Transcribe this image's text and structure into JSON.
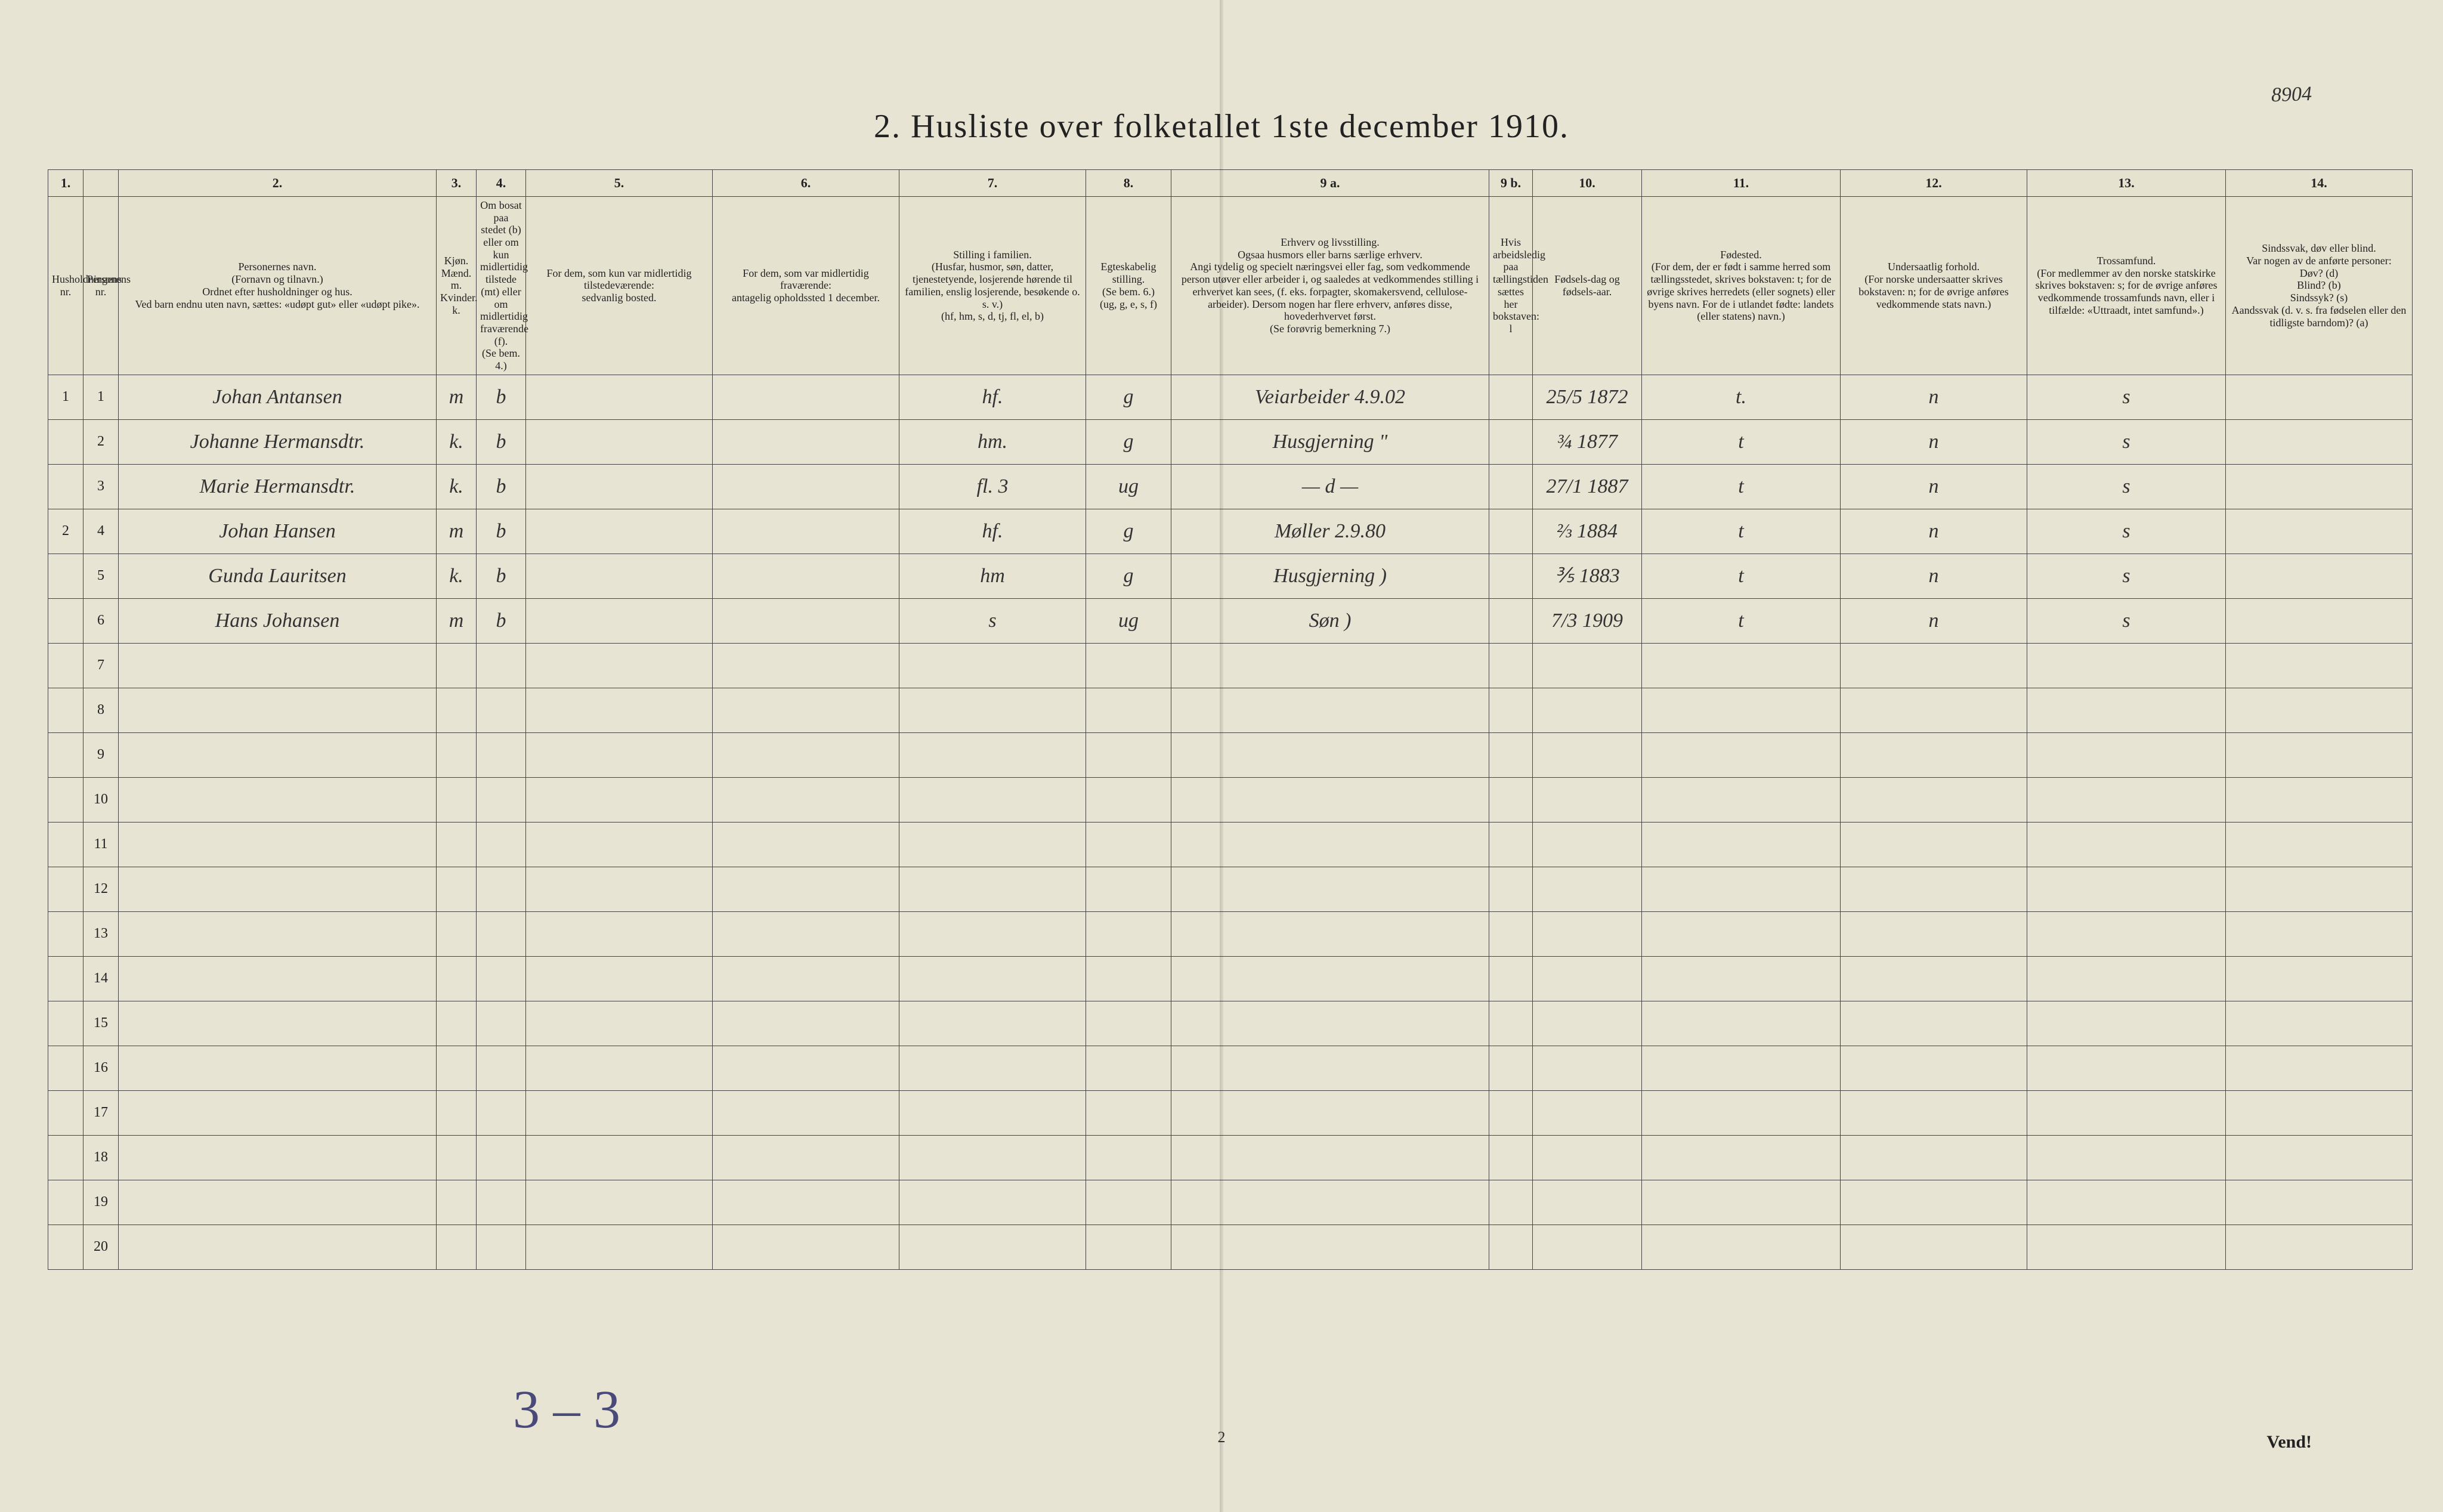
{
  "title": "2.  Husliste over folketallet 1ste december 1910.",
  "page_number_handwritten": "8904",
  "footer_left": "3 – 3",
  "footer_center": "2",
  "footer_right": "Vend!",
  "colors": {
    "paper": "#e8e4d4",
    "ink": "#222222",
    "rule": "#444444",
    "pencil": "#555555",
    "blue_ink": "#4a4a7a",
    "outer_bg": "#1a1a1a"
  },
  "column_numbers": [
    "1.",
    "",
    "2.",
    "3.",
    "4.",
    "5.",
    "6.",
    "7.",
    "8.",
    "9 a.",
    "9 b.",
    "10.",
    "11.",
    "12.",
    "13.",
    "14."
  ],
  "column_headers": [
    "Husholdningens nr.",
    "Personens nr.",
    "Personernes navn.\n(Fornavn og tilnavn.)\nOrdnet efter husholdninger og hus.\nVed barn endnu uten navn, sættes: «udøpt gut» eller «udøpt pike».",
    "Kjøn.\nMænd. m.\nKvinder. k.",
    "Om bosat paa stedet (b) eller om kun midlertidig tilstede (mt) eller om midlertidig fraværende (f).\n(Se bem. 4.)",
    "For dem, som kun var midlertidig tilstedeværende:\nsedvanlig bosted.",
    "For dem, som var midlertidig fraværende:\nantagelig opholdssted 1 december.",
    "Stilling i familien.\n(Husfar, husmor, søn, datter, tjenestetyende, losjerende hørende til familien, enslig losjerende, besøkende o. s. v.)\n(hf, hm, s, d, tj, fl, el, b)",
    "Egteskabelig stilling.\n(Se bem. 6.)\n(ug, g, e, s, f)",
    "Erhverv og livsstilling.\nOgsaa husmors eller barns særlige erhverv.\nAngi tydelig og specielt næringsvei eller fag, som vedkommende person utøver eller arbeider i, og saaledes at vedkommendes stilling i erhvervet kan sees, (f. eks. forpagter, skomakersvend, cellulose-arbeider). Dersom nogen har flere erhverv, anføres disse, hovederhvervet først.\n(Se forøvrig bemerkning 7.)",
    "Hvis arbeidsledig paa tællingstiden sættes her bokstaven: l",
    "Fødsels-dag og fødsels-aar.",
    "Fødested.\n(For dem, der er født i samme herred som tællingsstedet, skrives bokstaven: t; for de øvrige skrives herredets (eller sognets) eller byens navn. For de i utlandet fødte: landets (eller statens) navn.)",
    "Undersaatlig forhold.\n(For norske undersaatter skrives bokstaven: n; for de øvrige anføres vedkommende stats navn.)",
    "Trossamfund.\n(For medlemmer av den norske statskirke skrives bokstaven: s; for de øvrige anføres vedkommende trossamfunds navn, eller i tilfælde: «Uttraadt, intet samfund».)",
    "Sindssvak, døv eller blind.\nVar nogen av de anførte personer:\nDøv? (d)\nBlind? (b)\nSindssyk? (s)\nAandssvak (d. v. s. fra fødselen eller den tidligste barndom)? (a)"
  ],
  "rows": [
    {
      "hh": "1",
      "pn": "1",
      "name": "Johan Antansen",
      "sex": "m",
      "bosat": "b",
      "c5": "",
      "c6": "",
      "c7": "hf.",
      "c8": "g",
      "c9a": "Veiarbeider  4.9.02",
      "c9b": "",
      "c10": "25/5 1872",
      "c11": "t.",
      "c12": "n",
      "c13": "s",
      "c14": ""
    },
    {
      "hh": "",
      "pn": "2",
      "name": "Johanne Hermansdtr.",
      "sex": "k.",
      "bosat": "b",
      "c5": "",
      "c6": "",
      "c7": "hm.",
      "c8": "g",
      "c9a": "Husgjerning        \"",
      "c9b": "",
      "c10": "¾ 1877",
      "c11": "t",
      "c12": "n",
      "c13": "s",
      "c14": ""
    },
    {
      "hh": "",
      "pn": "3",
      "name": "Marie Hermansdtr.",
      "sex": "k.",
      "bosat": "b",
      "c5": "",
      "c6": "",
      "c7": "fl.      3",
      "c8": "ug",
      "c9a": "— d —",
      "c9b": "",
      "c10": "27/1 1887",
      "c11": "t",
      "c12": "n",
      "c13": "s",
      "c14": ""
    },
    {
      "hh": "2",
      "pn": "4",
      "name": "Johan Hansen",
      "sex": "m",
      "bosat": "b",
      "c5": "",
      "c6": "",
      "c7": "hf.",
      "c8": "g",
      "c9a": "Møller    2.9.80",
      "c9b": "",
      "c10": "⅔ 1884",
      "c11": "t",
      "c12": "n",
      "c13": "s",
      "c14": ""
    },
    {
      "hh": "",
      "pn": "5",
      "name": "Gunda Lauritsen",
      "sex": "k.",
      "bosat": "b",
      "c5": "",
      "c6": "",
      "c7": "hm",
      "c8": "g",
      "c9a": "Husgjerning    )",
      "c9b": "",
      "c10": "⅗ 1883",
      "c11": "t",
      "c12": "n",
      "c13": "s",
      "c14": ""
    },
    {
      "hh": "",
      "pn": "6",
      "name": "Hans Johansen",
      "sex": "m",
      "bosat": "b",
      "c5": "",
      "c6": "",
      "c7": "s",
      "c8": "ug",
      "c9a": "Søn         )",
      "c9b": "",
      "c10": "7/3 1909",
      "c11": "t",
      "c12": "n",
      "c13": "s",
      "c14": ""
    },
    {
      "hh": "",
      "pn": "7",
      "name": "",
      "sex": "",
      "bosat": "",
      "c5": "",
      "c6": "",
      "c7": "",
      "c8": "",
      "c9a": "",
      "c9b": "",
      "c10": "",
      "c11": "",
      "c12": "",
      "c13": "",
      "c14": ""
    },
    {
      "hh": "",
      "pn": "8",
      "name": "",
      "sex": "",
      "bosat": "",
      "c5": "",
      "c6": "",
      "c7": "",
      "c8": "",
      "c9a": "",
      "c9b": "",
      "c10": "",
      "c11": "",
      "c12": "",
      "c13": "",
      "c14": ""
    },
    {
      "hh": "",
      "pn": "9",
      "name": "",
      "sex": "",
      "bosat": "",
      "c5": "",
      "c6": "",
      "c7": "",
      "c8": "",
      "c9a": "",
      "c9b": "",
      "c10": "",
      "c11": "",
      "c12": "",
      "c13": "",
      "c14": ""
    },
    {
      "hh": "",
      "pn": "10",
      "name": "",
      "sex": "",
      "bosat": "",
      "c5": "",
      "c6": "",
      "c7": "",
      "c8": "",
      "c9a": "",
      "c9b": "",
      "c10": "",
      "c11": "",
      "c12": "",
      "c13": "",
      "c14": ""
    },
    {
      "hh": "",
      "pn": "11",
      "name": "",
      "sex": "",
      "bosat": "",
      "c5": "",
      "c6": "",
      "c7": "",
      "c8": "",
      "c9a": "",
      "c9b": "",
      "c10": "",
      "c11": "",
      "c12": "",
      "c13": "",
      "c14": ""
    },
    {
      "hh": "",
      "pn": "12",
      "name": "",
      "sex": "",
      "bosat": "",
      "c5": "",
      "c6": "",
      "c7": "",
      "c8": "",
      "c9a": "",
      "c9b": "",
      "c10": "",
      "c11": "",
      "c12": "",
      "c13": "",
      "c14": ""
    },
    {
      "hh": "",
      "pn": "13",
      "name": "",
      "sex": "",
      "bosat": "",
      "c5": "",
      "c6": "",
      "c7": "",
      "c8": "",
      "c9a": "",
      "c9b": "",
      "c10": "",
      "c11": "",
      "c12": "",
      "c13": "",
      "c14": ""
    },
    {
      "hh": "",
      "pn": "14",
      "name": "",
      "sex": "",
      "bosat": "",
      "c5": "",
      "c6": "",
      "c7": "",
      "c8": "",
      "c9a": "",
      "c9b": "",
      "c10": "",
      "c11": "",
      "c12": "",
      "c13": "",
      "c14": ""
    },
    {
      "hh": "",
      "pn": "15",
      "name": "",
      "sex": "",
      "bosat": "",
      "c5": "",
      "c6": "",
      "c7": "",
      "c8": "",
      "c9a": "",
      "c9b": "",
      "c10": "",
      "c11": "",
      "c12": "",
      "c13": "",
      "c14": ""
    },
    {
      "hh": "",
      "pn": "16",
      "name": "",
      "sex": "",
      "bosat": "",
      "c5": "",
      "c6": "",
      "c7": "",
      "c8": "",
      "c9a": "",
      "c9b": "",
      "c10": "",
      "c11": "",
      "c12": "",
      "c13": "",
      "c14": ""
    },
    {
      "hh": "",
      "pn": "17",
      "name": "",
      "sex": "",
      "bosat": "",
      "c5": "",
      "c6": "",
      "c7": "",
      "c8": "",
      "c9a": "",
      "c9b": "",
      "c10": "",
      "c11": "",
      "c12": "",
      "c13": "",
      "c14": ""
    },
    {
      "hh": "",
      "pn": "18",
      "name": "",
      "sex": "",
      "bosat": "",
      "c5": "",
      "c6": "",
      "c7": "",
      "c8": "",
      "c9a": "",
      "c9b": "",
      "c10": "",
      "c11": "",
      "c12": "",
      "c13": "",
      "c14": ""
    },
    {
      "hh": "",
      "pn": "19",
      "name": "",
      "sex": "",
      "bosat": "",
      "c5": "",
      "c6": "",
      "c7": "",
      "c8": "",
      "c9a": "",
      "c9b": "",
      "c10": "",
      "c11": "",
      "c12": "",
      "c13": "",
      "c14": ""
    },
    {
      "hh": "",
      "pn": "20",
      "name": "",
      "sex": "",
      "bosat": "",
      "c5": "",
      "c6": "",
      "c7": "",
      "c8": "",
      "c9a": "",
      "c9b": "",
      "c10": "",
      "c11": "",
      "c12": "",
      "c13": "",
      "c14": ""
    }
  ]
}
